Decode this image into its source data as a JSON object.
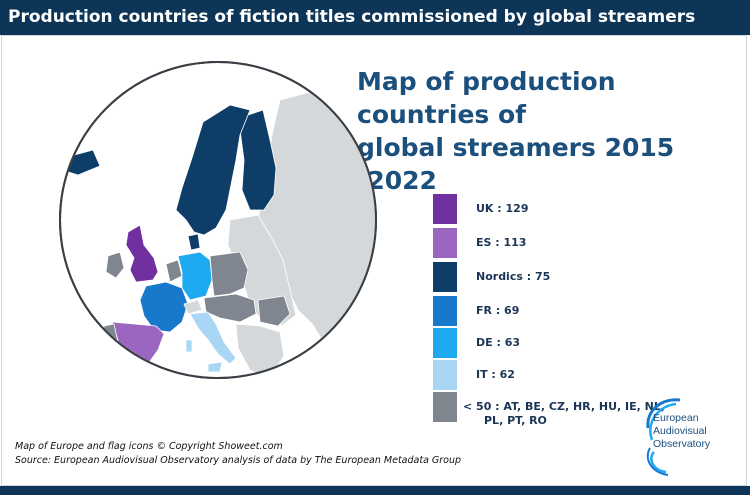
{
  "header": {
    "title": "Production countries of fiction titles commissioned by global streamers"
  },
  "map_title": {
    "line1": "Map of production countries of",
    "line2": "global streamers 2015 -2022"
  },
  "legend": {
    "items": [
      {
        "label": "UK : 129",
        "color": "#7030a0"
      },
      {
        "label": "ES : 113",
        "color": "#9b66c0"
      },
      {
        "label": "Nordics : 75",
        "color": "#0e3e68"
      },
      {
        "label": "FR : 69",
        "color": "#1878cc"
      },
      {
        "label": "DE : 63",
        "color": "#1eaaf0"
      },
      {
        "label": "IT : 62",
        "color": "#a9d6f5"
      },
      {
        "label": "< 50 : AT, BE, CZ, HR, HU, IE, NL,",
        "label_line2": "PL, PT, RO",
        "color": "#7f8690"
      }
    ]
  },
  "map_colors": {
    "other": "#d5d8db",
    "sea": "#ffffff",
    "outline": "#3a3f45"
  },
  "source": {
    "line1": "Map of Europe and flag icons © Copyright Showeet.com",
    "line2": "Source: European Audiovisual Observatory analysis of data by The European Metadata Group"
  },
  "logo": {
    "line1": "European",
    "line2": "Audiovisual",
    "line3": "Observatory"
  }
}
